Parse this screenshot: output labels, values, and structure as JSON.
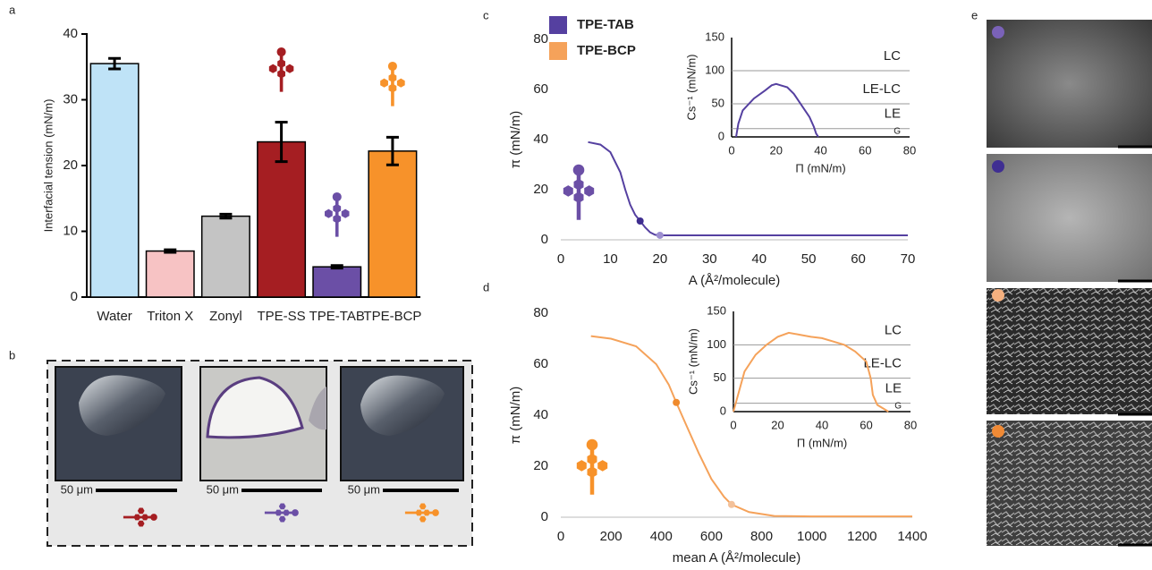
{
  "panel_labels": [
    "a",
    "b",
    "c",
    "d",
    "e"
  ],
  "chart_data": [
    {
      "type": "bar",
      "ylabel": "Interfacial tension (mN/m)",
      "categories": [
        "Water",
        "Triton X",
        "Zonyl",
        "TPE-SS",
        "TPE-TAB",
        "TPE-BCP"
      ],
      "values": [
        35.5,
        7,
        12.3,
        23.6,
        4.6,
        22.2
      ],
      "errors": [
        0.8,
        0.2,
        0.3,
        3,
        0.2,
        2.1
      ],
      "colors": [
        "#bfe3f7",
        "#f7c3c4",
        "#c4c4c4",
        "#a51e22",
        "#6b4fa6",
        "#f7922a"
      ],
      "ylim": [
        0,
        40
      ],
      "yticks": [
        0,
        10,
        20,
        30,
        40
      ]
    },
    {
      "type": "line",
      "xlabel": "A (Å²/molecule)",
      "ylabel": "π (mN/m)",
      "x": [
        5.5,
        8,
        10,
        12,
        13,
        14,
        15,
        16,
        17,
        18,
        19,
        20,
        30,
        70
      ],
      "series": [
        {
          "name": "TPE-TAB",
          "color": "#5540a0",
          "values": [
            39,
            38,
            35,
            27,
            20,
            14,
            10,
            7.5,
            5,
            3,
            2,
            1.8,
            1.8,
            1.8
          ]
        }
      ],
      "markers": {
        "x": [
          16,
          20
        ],
        "values": [
          7.5,
          1.8
        ],
        "colors": [
          "#3e2d8f",
          "#9d8fd0"
        ]
      },
      "xlim": [
        0,
        70
      ],
      "xticks": [
        0,
        10,
        20,
        30,
        40,
        50,
        60,
        70
      ],
      "ylim": [
        0,
        80
      ],
      "yticks": [
        0,
        20,
        40,
        60,
        80
      ]
    },
    {
      "type": "line",
      "xlabel": "Π (mN/m)",
      "ylabel": "Cs⁻¹ (mN/m)",
      "x": [
        2,
        3,
        5,
        10,
        15,
        18,
        20,
        22,
        25,
        28,
        30,
        33,
        35,
        37,
        38,
        39
      ],
      "values": [
        0,
        20,
        40,
        58,
        70,
        78,
        80,
        78,
        75,
        65,
        55,
        40,
        30,
        15,
        5,
        0
      ],
      "color": "#5540a0",
      "phases": [
        {
          "label": "LC",
          "min": 100
        },
        {
          "label": "LE-LC",
          "min": 50
        },
        {
          "label": "LE",
          "min": 12.5
        },
        {
          "label": "G",
          "min": 0
        }
      ],
      "xlim": [
        0,
        80
      ],
      "xticks": [
        0,
        20,
        40,
        60,
        80
      ],
      "ylim": [
        0,
        150
      ],
      "yticks": [
        0,
        50,
        100,
        150
      ]
    },
    {
      "type": "line",
      "xlabel": "mean A (Å²/molecule)",
      "ylabel": "π (mN/m)",
      "x": [
        120,
        200,
        300,
        380,
        430,
        460,
        500,
        550,
        600,
        650,
        680,
        750,
        850,
        1000,
        1400
      ],
      "series": [
        {
          "name": "TPE-BCP",
          "color": "#f5a25a",
          "values": [
            71,
            70,
            67,
            60,
            52,
            45,
            36,
            25,
            15,
            8,
            5,
            2,
            0.5,
            0.3,
            0.3
          ]
        }
      ],
      "markers": {
        "x": [
          460,
          680
        ],
        "values": [
          45,
          5
        ],
        "colors": [
          "#ef8a2c",
          "#f3c19a"
        ]
      },
      "xlim": [
        0,
        1400
      ],
      "xticks": [
        0,
        200,
        400,
        600,
        800,
        1000,
        1200,
        1400
      ],
      "ylim": [
        0,
        80
      ],
      "yticks": [
        0,
        20,
        40,
        60,
        80
      ]
    },
    {
      "type": "line",
      "xlabel": "Π (mN/m)",
      "ylabel": "Cs⁻¹ (mN/m)",
      "x": [
        0,
        5,
        10,
        15,
        20,
        25,
        30,
        35,
        40,
        45,
        50,
        55,
        60,
        62,
        63,
        65,
        70
      ],
      "values": [
        0,
        60,
        85,
        100,
        112,
        118,
        115,
        112,
        110,
        105,
        100,
        90,
        75,
        50,
        25,
        10,
        0
      ],
      "color": "#f5a25a",
      "phases": [
        {
          "label": "LC",
          "min": 100
        },
        {
          "label": "LE-LC",
          "min": 50
        },
        {
          "label": "LE",
          "min": 12.5
        },
        {
          "label": "G",
          "min": 0
        }
      ],
      "xlim": [
        0,
        80
      ],
      "xticks": [
        0,
        20,
        40,
        60,
        80
      ],
      "ylim": [
        0,
        150
      ],
      "yticks": [
        0,
        50,
        100,
        150
      ]
    }
  ],
  "panel_b": {
    "scale_labels": [
      "50 μm",
      "50 μm",
      "50 μm"
    ]
  }
}
